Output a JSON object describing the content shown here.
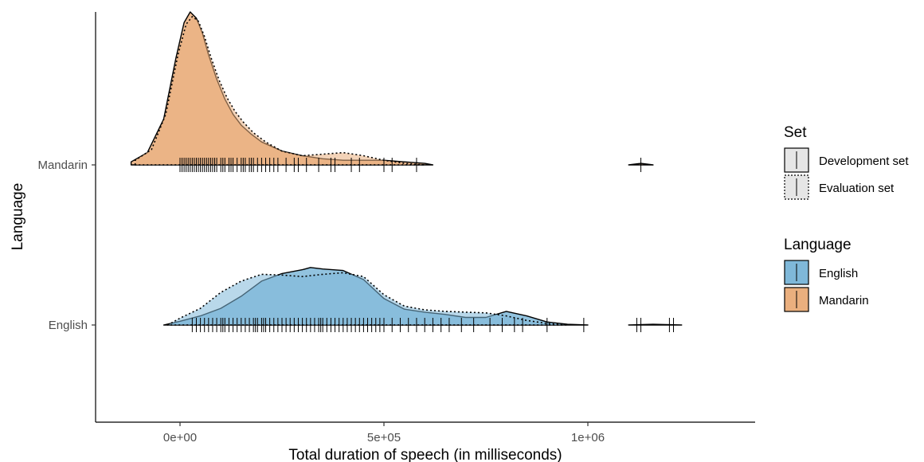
{
  "chart_data": {
    "type": "ridgeline-density",
    "xlabel": "Total duration of speech (in milliseconds)",
    "ylabel": "Language",
    "xlim": [
      -210000,
      1410000
    ],
    "x_ticks": [
      {
        "value": 0,
        "label": "0e+00"
      },
      {
        "value": 500000,
        "label": "5e+05"
      },
      {
        "value": 1000000,
        "label": "1e+06"
      }
    ],
    "categories": [
      "Mandarin",
      "English"
    ],
    "colors": {
      "English": "#7fb8d9",
      "Mandarin": "#eaaf7e"
    },
    "grid": false,
    "legend_placement": "right",
    "series": [
      {
        "language": "Mandarin",
        "set": "Development set",
        "line": "solid",
        "x": [
          -120000,
          -80000,
          -40000,
          -10000,
          10000,
          25000,
          40000,
          55000,
          70000,
          90000,
          110000,
          130000,
          150000,
          175000,
          200000,
          250000,
          300000,
          350000,
          400000,
          450000,
          500000,
          550000,
          600000,
          620000
        ],
        "density": [
          0.02,
          0.08,
          0.3,
          0.7,
          0.93,
          1.0,
          0.96,
          0.86,
          0.72,
          0.56,
          0.43,
          0.33,
          0.26,
          0.2,
          0.15,
          0.09,
          0.06,
          0.04,
          0.03,
          0.03,
          0.03,
          0.02,
          0.01,
          0.0
        ]
      },
      {
        "language": "Mandarin",
        "set": "Evaluation set",
        "line": "dotted",
        "x": [
          -110000,
          -70000,
          -35000,
          -5000,
          15000,
          30000,
          45000,
          60000,
          75000,
          95000,
          115000,
          135000,
          155000,
          180000,
          210000,
          250000,
          300000,
          350000,
          400000,
          450000,
          500000,
          550000,
          600000
        ],
        "density": [
          0.03,
          0.1,
          0.33,
          0.72,
          0.92,
          0.97,
          0.94,
          0.84,
          0.71,
          0.56,
          0.44,
          0.35,
          0.28,
          0.21,
          0.15,
          0.09,
          0.06,
          0.07,
          0.08,
          0.06,
          0.03,
          0.01,
          0.0
        ]
      },
      {
        "language": "Mandarin",
        "set": "Development set",
        "line": "solid",
        "x": [
          1100000,
          1130000,
          1160000
        ],
        "density": [
          0.0,
          0.01,
          0.0
        ]
      },
      {
        "language": "English",
        "set": "Development set",
        "line": "solid",
        "x": [
          -40000,
          0,
          50000,
          100000,
          150000,
          200000,
          250000,
          300000,
          320000,
          350000,
          400000,
          450000,
          500000,
          550000,
          600000,
          650000,
          700000,
          750000,
          800000,
          850000,
          900000,
          950000,
          1000000
        ],
        "density": [
          0.0,
          0.05,
          0.12,
          0.22,
          0.38,
          0.58,
          0.68,
          0.73,
          0.76,
          0.74,
          0.72,
          0.6,
          0.35,
          0.21,
          0.17,
          0.14,
          0.1,
          0.1,
          0.18,
          0.12,
          0.04,
          0.01,
          0.0
        ]
      },
      {
        "language": "English",
        "set": "Evaluation set",
        "line": "dotted",
        "x": [
          -30000,
          0,
          50000,
          100000,
          150000,
          200000,
          250000,
          300000,
          350000,
          400000,
          450000,
          500000,
          550000,
          600000,
          650000,
          700000,
          750000,
          800000,
          850000,
          900000,
          950000
        ],
        "density": [
          0.0,
          0.09,
          0.22,
          0.43,
          0.58,
          0.67,
          0.66,
          0.64,
          0.67,
          0.69,
          0.64,
          0.4,
          0.25,
          0.2,
          0.18,
          0.17,
          0.16,
          0.12,
          0.06,
          0.02,
          0.0
        ]
      },
      {
        "language": "English",
        "set": "Development set",
        "line": "solid",
        "x": [
          1100000,
          1160000,
          1230000
        ],
        "density": [
          0.0,
          0.01,
          0.0
        ]
      }
    ],
    "rug": {
      "Mandarin": [
        0,
        5000,
        10000,
        15000,
        20000,
        25000,
        30000,
        35000,
        40000,
        45000,
        50000,
        55000,
        60000,
        65000,
        70000,
        75000,
        80000,
        85000,
        90000,
        100000,
        105000,
        110000,
        120000,
        125000,
        130000,
        140000,
        150000,
        155000,
        160000,
        170000,
        175000,
        180000,
        190000,
        200000,
        210000,
        220000,
        230000,
        240000,
        260000,
        280000,
        290000,
        310000,
        340000,
        370000,
        380000,
        420000,
        440000,
        500000,
        520000,
        580000,
        1130000
      ],
      "English": [
        30000,
        40000,
        50000,
        60000,
        70000,
        80000,
        90000,
        100000,
        105000,
        110000,
        120000,
        130000,
        140000,
        150000,
        160000,
        170000,
        180000,
        185000,
        190000,
        200000,
        205000,
        210000,
        220000,
        230000,
        240000,
        250000,
        260000,
        270000,
        280000,
        290000,
        300000,
        310000,
        320000,
        330000,
        340000,
        345000,
        350000,
        360000,
        370000,
        380000,
        390000,
        400000,
        410000,
        420000,
        430000,
        440000,
        450000,
        460000,
        470000,
        480000,
        490000,
        500000,
        520000,
        540000,
        560000,
        580000,
        600000,
        620000,
        640000,
        660000,
        690000,
        720000,
        760000,
        790000,
        820000,
        840000,
        900000,
        990000,
        1120000,
        1130000,
        1200000,
        1210000
      ]
    }
  },
  "legend": {
    "set": {
      "title": "Set",
      "items": [
        {
          "label": "Development set",
          "line": "solid"
        },
        {
          "label": "Evaluation set",
          "line": "dotted"
        }
      ]
    },
    "language": {
      "title": "Language",
      "items": [
        {
          "label": "English",
          "color": "#7fb8d9"
        },
        {
          "label": "Mandarin",
          "color": "#eaaf7e"
        }
      ]
    }
  }
}
